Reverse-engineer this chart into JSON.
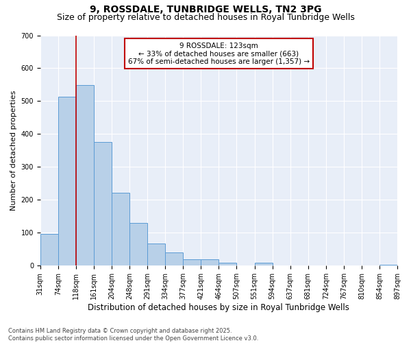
{
  "title": "9, ROSSDALE, TUNBRIDGE WELLS, TN2 3PG",
  "subtitle": "Size of property relative to detached houses in Royal Tunbridge Wells",
  "xlabel": "Distribution of detached houses by size in Royal Tunbridge Wells",
  "ylabel": "Number of detached properties",
  "bin_labels": [
    "31sqm",
    "74sqm",
    "118sqm",
    "161sqm",
    "204sqm",
    "248sqm",
    "291sqm",
    "334sqm",
    "377sqm",
    "421sqm",
    "464sqm",
    "507sqm",
    "551sqm",
    "594sqm",
    "637sqm",
    "681sqm",
    "724sqm",
    "767sqm",
    "810sqm",
    "854sqm",
    "897sqm"
  ],
  "counts": [
    97,
    513,
    549,
    375,
    221,
    130,
    68,
    40,
    20,
    20,
    10,
    0,
    10,
    0,
    0,
    0,
    0,
    0,
    0,
    2
  ],
  "bar_color": "#b8d0e8",
  "bar_edge_color": "#5b9bd5",
  "vline_bin": 2,
  "vline_color": "#c00000",
  "annotation_text": "9 ROSSDALE: 123sqm\n← 33% of detached houses are smaller (663)\n67% of semi-detached houses are larger (1,357) →",
  "annotation_box_color": "#ffffff",
  "annotation_border_color": "#c00000",
  "ylim": [
    0,
    700
  ],
  "yticks": [
    0,
    100,
    200,
    300,
    400,
    500,
    600,
    700
  ],
  "plot_bg_color": "#e8eef8",
  "fig_bg_color": "#ffffff",
  "footnote": "Contains HM Land Registry data © Crown copyright and database right 2025.\nContains public sector information licensed under the Open Government Licence v3.0.",
  "title_fontsize": 10,
  "subtitle_fontsize": 9,
  "xlabel_fontsize": 8.5,
  "ylabel_fontsize": 8,
  "tick_fontsize": 7,
  "annotation_fontsize": 7.5,
  "footnote_fontsize": 6
}
